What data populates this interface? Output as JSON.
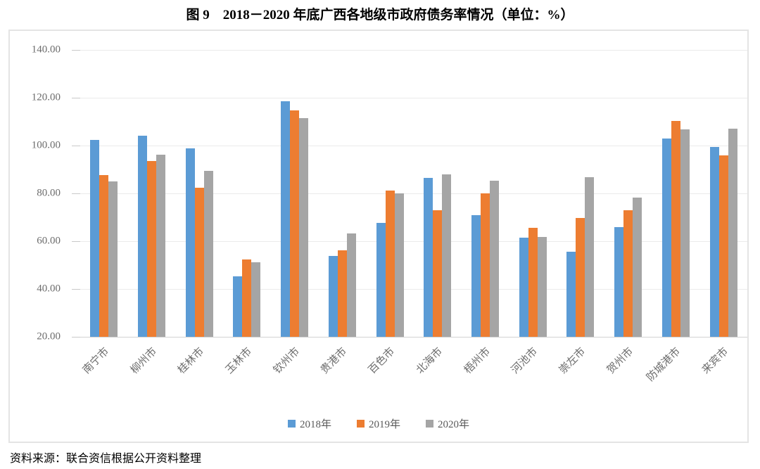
{
  "title": "图 9　2018－2020 年底广西各地级市政府债务率情况（单位：%）",
  "source_note": "资料来源：联合资信根据公开资料整理",
  "chart_data": {
    "type": "bar",
    "title": "图 9　2018－2020 年底广西各地级市政府债务率情况",
    "unit": "%",
    "categories": [
      "南宁市",
      "柳州市",
      "桂林市",
      "玉林市",
      "钦州市",
      "贵港市",
      "百色市",
      "北海市",
      "梧州市",
      "河池市",
      "崇左市",
      "贺州市",
      "防城港市",
      "来宾市"
    ],
    "series": [
      {
        "name": "2018年",
        "color": "#5B9BD5",
        "values": [
          102.4,
          104.2,
          98.9,
          45.3,
          118.6,
          53.9,
          67.7,
          86.6,
          71.0,
          61.5,
          55.5,
          65.8,
          103.1,
          99.5
        ]
      },
      {
        "name": "2019年",
        "color": "#ED7D31",
        "values": [
          87.6,
          93.4,
          82.3,
          52.5,
          114.7,
          56.2,
          81.2,
          73.1,
          80.0,
          65.7,
          69.8,
          73.0,
          110.4,
          96.0
        ]
      },
      {
        "name": "2020年",
        "color": "#A5A5A5",
        "values": [
          85.0,
          96.3,
          89.4,
          51.3,
          111.6,
          63.3,
          80.1,
          88.0,
          85.2,
          61.7,
          86.7,
          78.3,
          106.7,
          107.1
        ]
      }
    ],
    "ylim": [
      20,
      140
    ],
    "ytick_step": 20,
    "yticks": [
      "140.00",
      "120.00",
      "100.00",
      "80.00",
      "60.00",
      "40.00",
      "20.00"
    ],
    "grid": true,
    "legend_position": "bottom",
    "xlabel": "",
    "ylabel": ""
  }
}
